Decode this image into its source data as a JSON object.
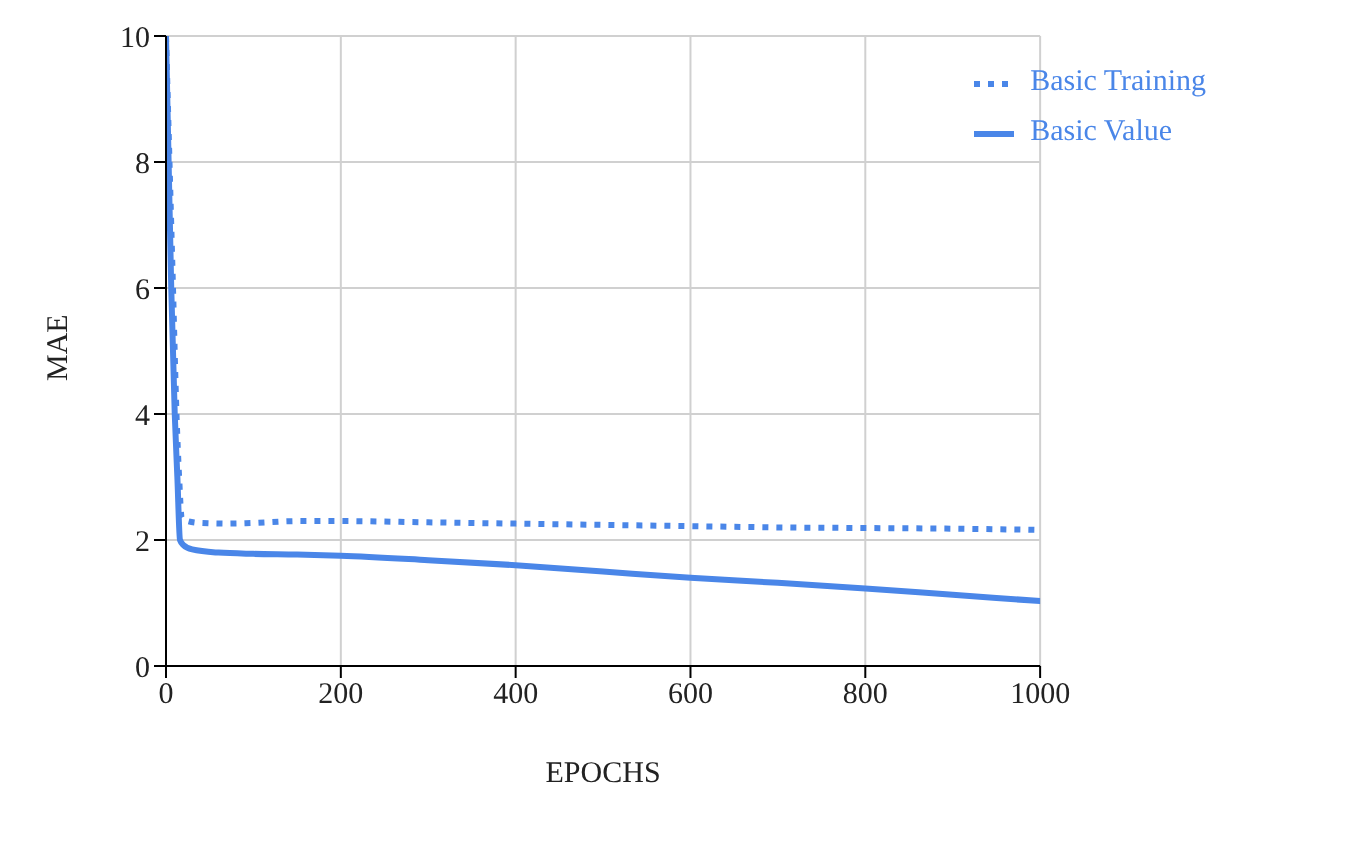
{
  "chart_data": {
    "type": "line",
    "xlabel": "EPOCHS",
    "ylabel": "MAE",
    "xlim": [
      0,
      1000
    ],
    "xticks": [
      0,
      200,
      400,
      600,
      800,
      1000
    ],
    "ylim": [
      0,
      10
    ],
    "yticks": [
      0,
      2,
      4,
      6,
      8,
      10
    ],
    "grid": true,
    "legend": "top right",
    "marker": "none",
    "series": [
      {
        "name": "Basic Training",
        "color": "#4a86e8",
        "line_style": "dotted",
        "x": [
          0,
          4,
          8,
          12,
          15,
          18,
          25,
          40,
          70,
          100,
          150,
          200,
          300,
          400,
          500,
          600,
          700,
          800,
          900,
          1000
        ],
        "values": [
          10,
          8,
          6,
          4,
          3,
          2.35,
          2.3,
          2.27,
          2.26,
          2.27,
          2.3,
          2.3,
          2.28,
          2.26,
          2.24,
          2.22,
          2.2,
          2.19,
          2.18,
          2.16
        ]
      },
      {
        "name": "Basic Value",
        "color": "#4a86e8",
        "line_style": "solid",
        "x": [
          0,
          3,
          6,
          10,
          13,
          16,
          20,
          30,
          60,
          100,
          150,
          200,
          300,
          400,
          500,
          600,
          700,
          800,
          900,
          1000
        ],
        "values": [
          10,
          8,
          6,
          4,
          3,
          2,
          1.92,
          1.85,
          1.8,
          1.78,
          1.77,
          1.75,
          1.68,
          1.6,
          1.5,
          1.4,
          1.32,
          1.23,
          1.13,
          1.03
        ]
      }
    ]
  }
}
